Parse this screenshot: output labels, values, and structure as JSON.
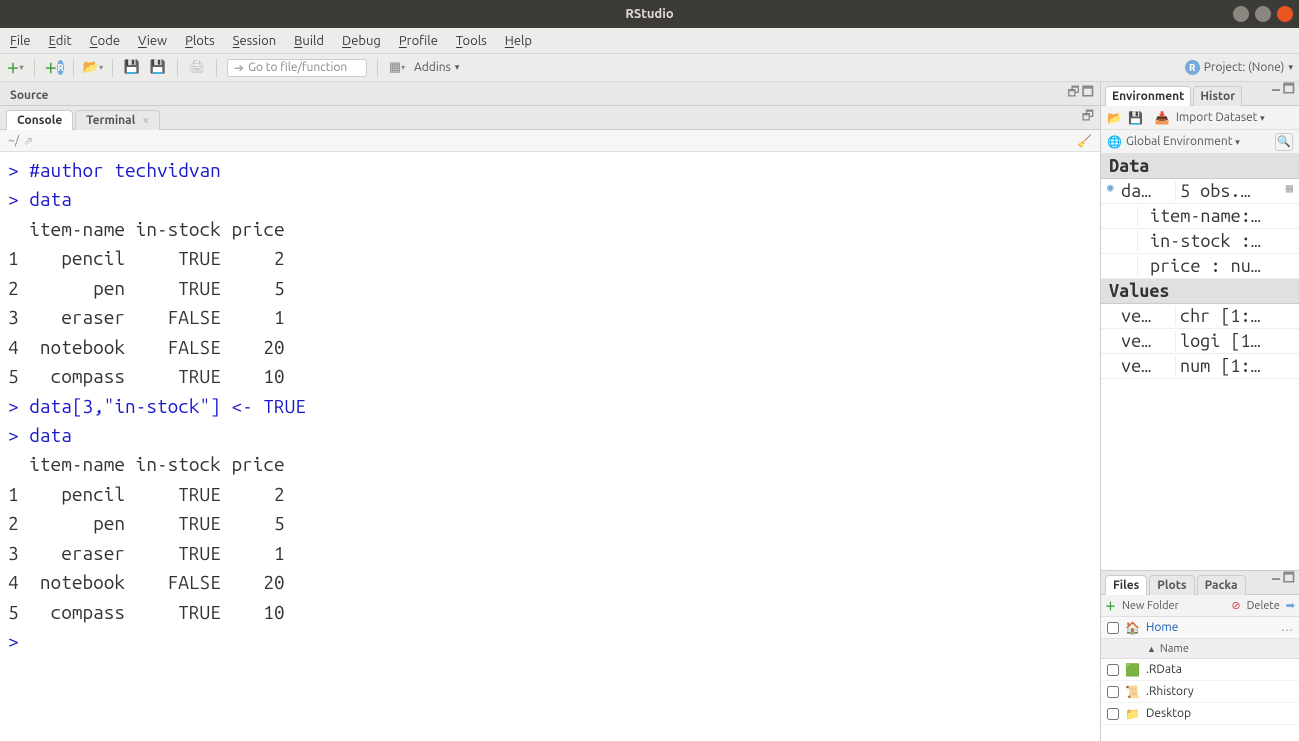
{
  "window": {
    "title": "RStudio"
  },
  "menubar": [
    "File",
    "Edit",
    "Code",
    "View",
    "Plots",
    "Session",
    "Build",
    "Debug",
    "Profile",
    "Tools",
    "Help"
  ],
  "toolbar": {
    "goto_placeholder": "Go to file/function",
    "addins_label": "Addins",
    "project_label": "Project: (None)"
  },
  "source_pane": {
    "title": "Source"
  },
  "console_pane": {
    "tabs": {
      "console": "Console",
      "terminal": "Terminal"
    },
    "path": "~/",
    "lines": [
      {
        "type": "cmd",
        "text": "> #author techvidvan"
      },
      {
        "type": "cmd",
        "text": "> data"
      },
      {
        "type": "out",
        "text": "  item-name in-stock price"
      },
      {
        "type": "out",
        "text": "1    pencil     TRUE     2"
      },
      {
        "type": "out",
        "text": "2       pen     TRUE     5"
      },
      {
        "type": "out",
        "text": "3    eraser    FALSE     1"
      },
      {
        "type": "out",
        "text": "4  notebook    FALSE    20"
      },
      {
        "type": "out",
        "text": "5   compass     TRUE    10"
      },
      {
        "type": "cmd",
        "text": "> data[3,\"in-stock\"] <- TRUE"
      },
      {
        "type": "cmd",
        "text": "> data"
      },
      {
        "type": "out",
        "text": "  item-name in-stock price"
      },
      {
        "type": "out",
        "text": "1    pencil     TRUE     2"
      },
      {
        "type": "out",
        "text": "2       pen     TRUE     5"
      },
      {
        "type": "out",
        "text": "3    eraser     TRUE     1"
      },
      {
        "type": "out",
        "text": "4  notebook    FALSE    20"
      },
      {
        "type": "out",
        "text": "5   compass     TRUE    10"
      },
      {
        "type": "cmd",
        "text": "> "
      }
    ]
  },
  "env_pane": {
    "tabs": {
      "env": "Environment",
      "hist": "Histor"
    },
    "import_label": "Import Dataset",
    "scope_label": "Global Environment",
    "sections": {
      "data": "Data",
      "values": "Values"
    },
    "data_rows": [
      {
        "name": "da…",
        "value": "5 obs.…",
        "expand": true,
        "grid": true
      },
      {
        "name": "",
        "value": "item-name:…"
      },
      {
        "name": "",
        "value": "in-stock :…"
      },
      {
        "name": "",
        "value": "price : nu…"
      }
    ],
    "value_rows": [
      {
        "name": "ve…",
        "value": "chr [1:…"
      },
      {
        "name": "ve…",
        "value": "logi [1…"
      },
      {
        "name": "ve…",
        "value": "num [1:…"
      }
    ]
  },
  "files_pane": {
    "tabs": {
      "files": "Files",
      "plots": "Plots",
      "packages": "Packa"
    },
    "newfolder": "New Folder",
    "delete": "Delete",
    "home": "Home",
    "name_header": "Name",
    "rows": [
      {
        "icon": "rdata",
        "name": ".RData"
      },
      {
        "icon": "rhist",
        "name": ".Rhistory"
      },
      {
        "icon": "folder",
        "name": "Desktop"
      }
    ]
  },
  "colors": {
    "cmd": "#1a1acc",
    "titlebar": "#3c3b37",
    "close": "#e95420",
    "min": "#8a8781",
    "max": "#8a8781"
  }
}
